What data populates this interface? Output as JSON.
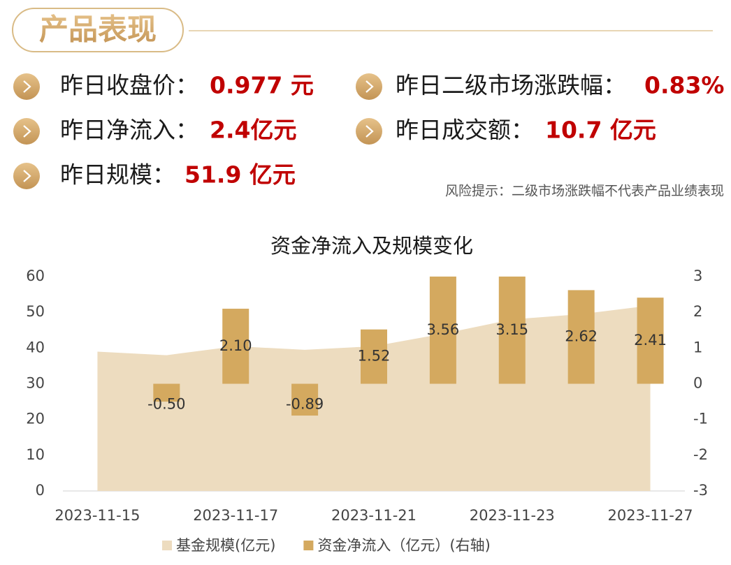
{
  "header": {
    "title": "产品表现"
  },
  "stats": [
    {
      "label": "昨日收盘价：",
      "value": "0.977 元"
    },
    {
      "label": "昨日二级市场涨跌幅：",
      "value": "0.83%"
    },
    {
      "label": "昨日净流入：",
      "value": "2.4亿元"
    },
    {
      "label": "昨日成交额：",
      "value": "10.7 亿元"
    },
    {
      "label": "昨日规模：",
      "value": "51.9 亿元"
    }
  ],
  "note": "风险提示：二级市场涨跌幅不代表产品业绩表现",
  "chart_data": {
    "type": "combo",
    "title": "资金净流入及规模变化",
    "categories": [
      "2023-11-15",
      null,
      "2023-11-17",
      null,
      "2023-11-21",
      null,
      "2023-11-23",
      null,
      "2023-11-27"
    ],
    "series": [
      {
        "name": "基金规模(亿元)",
        "type": "area",
        "color": "#eddcbf",
        "axis": "y",
        "values": [
          39,
          38,
          40.5,
          39.5,
          40.5,
          44,
          48,
          49.5,
          51.9
        ]
      },
      {
        "name": "资金净流入（亿元）(右轴)",
        "type": "bar",
        "color": "#d4a95f",
        "axis": "y2",
        "values": [
          null,
          -0.5,
          2.1,
          -0.89,
          1.52,
          3.56,
          3.15,
          2.62,
          2.41
        ],
        "value_labels": [
          null,
          "-0.50",
          "2.10",
          "-0.89",
          "1.52",
          "3.56",
          "3.15",
          "2.62",
          "2.41"
        ]
      }
    ],
    "ylim": [
      0,
      60
    ],
    "yticks": [
      0,
      10,
      20,
      30,
      40,
      50,
      60
    ],
    "y2lim": [
      -3,
      3
    ],
    "y2ticks": [
      -3,
      -2,
      -1,
      0,
      1,
      2,
      3
    ],
    "legend": "bottom"
  }
}
